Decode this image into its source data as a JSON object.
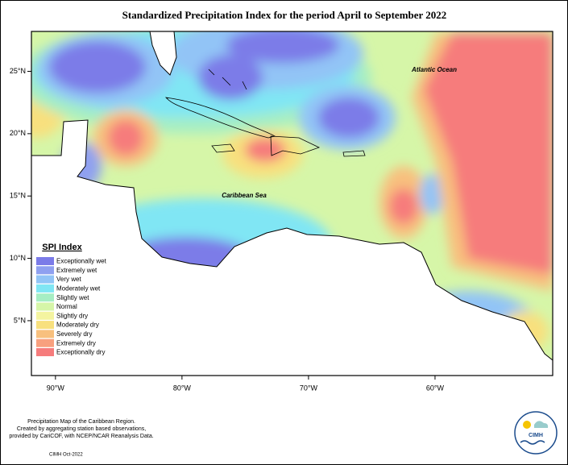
{
  "title": "Standardized Precipitation Index for the period April to September 2022",
  "map": {
    "lon_range": [
      -91.9,
      -50.7
    ],
    "lat_range": [
      0.6,
      28.2
    ],
    "lon_ticks": [
      {
        "value": -90,
        "label": "90°W"
      },
      {
        "value": -80,
        "label": "80°W"
      },
      {
        "value": -70,
        "label": "70°W"
      },
      {
        "value": -60,
        "label": "60°W"
      }
    ],
    "lat_ticks": [
      {
        "value": 25,
        "label": "25°N"
      },
      {
        "value": 20,
        "label": "20°N"
      },
      {
        "value": 15,
        "label": "15°N"
      },
      {
        "value": 10,
        "label": "10°N"
      },
      {
        "value": 5,
        "label": "5°N"
      }
    ],
    "annotations": [
      "Atlantic Ocean",
      "Caribbean Sea"
    ]
  },
  "legend": {
    "title": "SPI Index",
    "items": [
      {
        "label": "Exceptionally wet",
        "color": "#7b7be8"
      },
      {
        "label": "Extremely wet",
        "color": "#8fa0f0"
      },
      {
        "label": "Very wet",
        "color": "#92c4f6"
      },
      {
        "label": "Moderately wet",
        "color": "#80e6f4"
      },
      {
        "label": "Slightly wet",
        "color": "#a6eec4"
      },
      {
        "label": "Normal",
        "color": "#d6f6a8"
      },
      {
        "label": "Slightly dry",
        "color": "#f4f4a0"
      },
      {
        "label": "Moderately dry",
        "color": "#f8e07e"
      },
      {
        "label": "Severely dry",
        "color": "#f8c07e"
      },
      {
        "label": "Extremely dry",
        "color": "#f8a07e"
      },
      {
        "label": "Exceptionally dry",
        "color": "#f67c7c"
      }
    ]
  },
  "footer": {
    "lines": [
      "Precipitation Map of the Caribbean Region.",
      "Created by aggregating station based observations,",
      "provided by CariCOF, with NCEP/NCAR Reanalysis Data."
    ],
    "date": "CIMH Oct-2022"
  },
  "logo": "CIMH"
}
